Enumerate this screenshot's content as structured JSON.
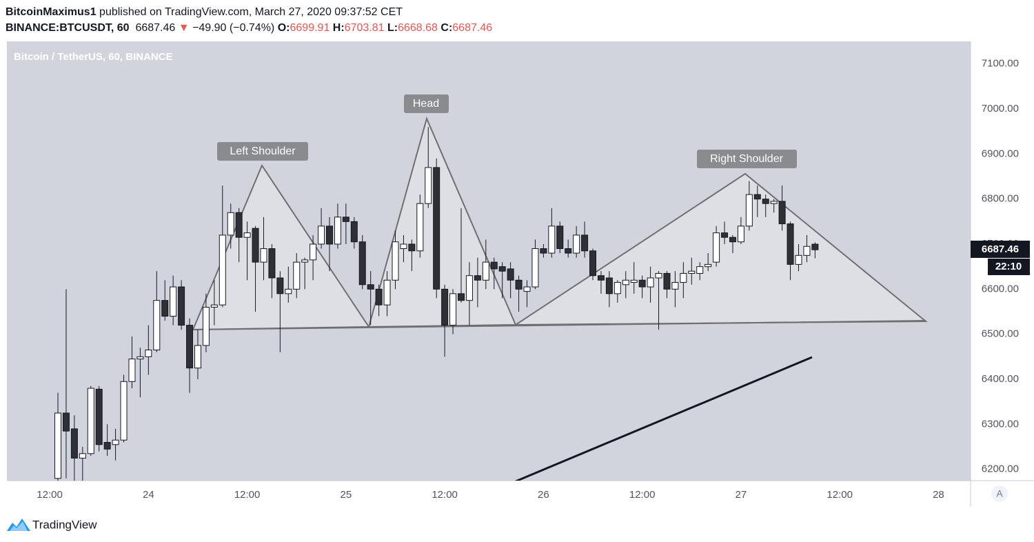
{
  "header": {
    "author": "BitcoinMaximus1",
    "published": "published on TradingView.com, March 27, 2020 09:37:52 CET",
    "symbol": "BINANCE:BTCUSDT, 60",
    "change": "−49.90 (−0.74%)",
    "open_label": "O:",
    "high_label": "H:",
    "low_label": "L:",
    "close_label": "C:"
  },
  "chart_data": {
    "type": "candlestick",
    "title": "Bitcoin / TetherUS, 60, BINANCE",
    "x": [
      13,
      14,
      15,
      16,
      17,
      18,
      19,
      20,
      21,
      22,
      23,
      24,
      25,
      26,
      27,
      28,
      29,
      30,
      31,
      32,
      33,
      34,
      35,
      36,
      37,
      38,
      39,
      40,
      41,
      42,
      43,
      44,
      45,
      46,
      47,
      48,
      49,
      50,
      51,
      52,
      53,
      54,
      55,
      56,
      57,
      58,
      59,
      60,
      61,
      62,
      63,
      64,
      65,
      66,
      67,
      68,
      69,
      70,
      71,
      72,
      73,
      74,
      75,
      76,
      77,
      78,
      79,
      80,
      81,
      82,
      83,
      84,
      85,
      86,
      87,
      88,
      89,
      90,
      91,
      92,
      93,
      94,
      95,
      96,
      97,
      98,
      99,
      100,
      101,
      102,
      103,
      104,
      105
    ],
    "open": [
      6180,
      6325,
      6290,
      6225,
      6235,
      6378,
      6260,
      6255,
      6265,
      6395,
      6445,
      6450,
      6465,
      6575,
      6540,
      6605,
      6520,
      6425,
      6475,
      6560,
      6565,
      6720,
      6770,
      6715,
      6735,
      6660,
      6690,
      6625,
      6590,
      6600,
      6660,
      6665,
      6700,
      6740,
      6700,
      6760,
      6750,
      6705,
      6610,
      6600,
      6565,
      6620,
      6690,
      6700,
      6685,
      6790,
      6870,
      6600,
      6520,
      6590,
      6575,
      6630,
      6620,
      6660,
      6650,
      6645,
      6620,
      6595,
      6605,
      6690,
      6680,
      6740,
      6690,
      6680,
      6720,
      6685,
      6630,
      6625,
      6590,
      6610,
      6615,
      6620,
      6605,
      6625,
      6635,
      6600,
      6615,
      6635,
      6635,
      6650,
      6660,
      6725,
      6715,
      6705,
      6740,
      6810,
      6800,
      6790,
      6795,
      6745,
      6655,
      6675,
      6699.91
    ],
    "high": [
      6370,
      6600,
      6320,
      6250,
      6385,
      6385,
      6300,
      6290,
      6410,
      6495,
      6470,
      6520,
      6640,
      6620,
      6630,
      6620,
      6535,
      6510,
      6590,
      6620,
      6830,
      6790,
      6780,
      6750,
      6740,
      6760,
      6700,
      6640,
      6650,
      6680,
      6670,
      6720,
      6780,
      6760,
      6790,
      6790,
      6760,
      6720,
      6640,
      6610,
      6640,
      6730,
      6720,
      6710,
      6810,
      6960,
      6890,
      6610,
      6600,
      6780,
      6660,
      6670,
      6710,
      6670,
      6660,
      6660,
      6630,
      6620,
      6710,
      6700,
      6780,
      6750,
      6710,
      6740,
      6750,
      6690,
      6640,
      6640,
      6620,
      6640,
      6660,
      6630,
      6650,
      6640,
      6640,
      6640,
      6660,
      6670,
      6660,
      6680,
      6740,
      6750,
      6720,
      6760,
      6840,
      6830,
      6810,
      6800,
      6830,
      6750,
      6700,
      6720,
      6703.81
    ],
    "low": [
      6150,
      6180,
      6160,
      6170,
      6230,
      6240,
      6230,
      6220,
      6260,
      6380,
      6360,
      6410,
      6460,
      6530,
      6520,
      6510,
      6370,
      6400,
      6460,
      6520,
      6560,
      6690,
      6660,
      6620,
      6550,
      6620,
      6580,
      6460,
      6570,
      6580,
      6600,
      6620,
      6690,
      6640,
      6690,
      6700,
      6690,
      6600,
      6520,
      6540,
      6540,
      6600,
      6660,
      6640,
      6670,
      6780,
      6580,
      6450,
      6500,
      6570,
      6520,
      6560,
      6600,
      6600,
      6580,
      6580,
      6550,
      6560,
      6600,
      6670,
      6670,
      6680,
      6670,
      6670,
      6670,
      6620,
      6590,
      6560,
      6570,
      6580,
      6590,
      6580,
      6570,
      6510,
      6580,
      6560,
      6580,
      6610,
      6620,
      6640,
      6650,
      6700,
      6680,
      6700,
      6730,
      6760,
      6760,
      6770,
      6730,
      6620,
      6640,
      6660,
      6668.68
    ],
    "close": [
      6325,
      6285,
      6225,
      6235,
      6380,
      6255,
      6245,
      6265,
      6395,
      6445,
      6450,
      6465,
      6575,
      6540,
      6605,
      6520,
      6425,
      6475,
      6560,
      6565,
      6720,
      6770,
      6715,
      6725,
      6660,
      6690,
      6625,
      6590,
      6600,
      6660,
      6665,
      6700,
      6740,
      6700,
      6760,
      6750,
      6705,
      6610,
      6600,
      6565,
      6620,
      6705,
      6700,
      6685,
      6790,
      6870,
      6600,
      6520,
      6590,
      6575,
      6630,
      6620,
      6660,
      6645,
      6640,
      6620,
      6600,
      6605,
      6690,
      6680,
      6740,
      6690,
      6680,
      6720,
      6685,
      6630,
      6620,
      6590,
      6615,
      6620,
      6620,
      6605,
      6625,
      6635,
      6600,
      6615,
      6635,
      6640,
      6650,
      6655,
      6725,
      6715,
      6705,
      6740,
      6810,
      6800,
      6790,
      6795,
      6745,
      6655,
      6675,
      6695,
      6687.46
    ],
    "up_color": "#ffffff",
    "down_color": "#2f3036",
    "wick_color": "#131722",
    "xlim": [
      6.8,
      123.9
    ],
    "xticks": [
      {
        "value": 12,
        "label": "12:00"
      },
      {
        "value": 24,
        "label": "24"
      },
      {
        "value": 36,
        "label": "12:00"
      },
      {
        "value": 48,
        "label": "25"
      },
      {
        "value": 60,
        "label": "12:00"
      },
      {
        "value": 72,
        "label": "26"
      },
      {
        "value": 84,
        "label": "12:00"
      },
      {
        "value": 96,
        "label": "27"
      },
      {
        "value": 108,
        "label": "12:00"
      },
      {
        "value": 120,
        "label": "28"
      }
    ],
    "ylim": [
      6175,
      7150
    ],
    "yticks": [
      {
        "value": 6200,
        "label": "6200.00"
      },
      {
        "value": 6300,
        "label": "6300.00"
      },
      {
        "value": 6400,
        "label": "6400.00"
      },
      {
        "value": 6500,
        "label": "6500.00"
      },
      {
        "value": 6600,
        "label": "6600.00"
      },
      {
        "value": 6700,
        "label": "6700.00"
      },
      {
        "value": 6800,
        "label": "6800.00"
      },
      {
        "value": 6900,
        "label": "6900.00"
      },
      {
        "value": 7000,
        "label": "7000.00"
      },
      {
        "value": 7100,
        "label": "7100.00"
      }
    ],
    "grid": false,
    "annotations": [
      "Left Shoulder",
      "Head",
      "Right Shoulder"
    ],
    "countdown": "22:10",
    "scale_button": "A",
    "brand": "TradingView"
  }
}
